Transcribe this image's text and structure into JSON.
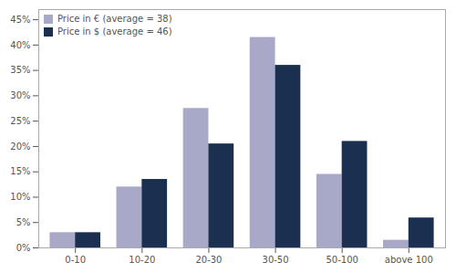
{
  "chart_data": {
    "type": "bar",
    "categories": [
      "0-10",
      "10-20",
      "20-30",
      "30-50",
      "50-100",
      "above 100"
    ],
    "series": [
      {
        "name": "Price in € (average = 38)",
        "color": "#a8a8c8",
        "values": [
          0.03,
          0.12,
          0.275,
          0.415,
          0.145,
          0.015
        ]
      },
      {
        "name": "Price in $ (average = 46)",
        "color": "#1b2f50",
        "values": [
          0.03,
          0.135,
          0.205,
          0.36,
          0.21,
          0.059
        ]
      }
    ],
    "ylim": [
      0,
      0.47
    ],
    "yticks": [
      {
        "value": 0,
        "label": "0%"
      },
      {
        "value": 0.05,
        "label": "5%"
      },
      {
        "value": 0.1,
        "label": "10%"
      },
      {
        "value": 0.15,
        "label": "15%"
      },
      {
        "value": 0.2,
        "label": "20%"
      },
      {
        "value": 0.25,
        "label": "25%"
      },
      {
        "value": 0.3,
        "label": "30%"
      },
      {
        "value": 0.35,
        "label": "35%"
      },
      {
        "value": 0.4,
        "label": "40%"
      },
      {
        "value": 0.45,
        "label": "45%"
      }
    ],
    "grid": false,
    "legend": "upper left"
  }
}
